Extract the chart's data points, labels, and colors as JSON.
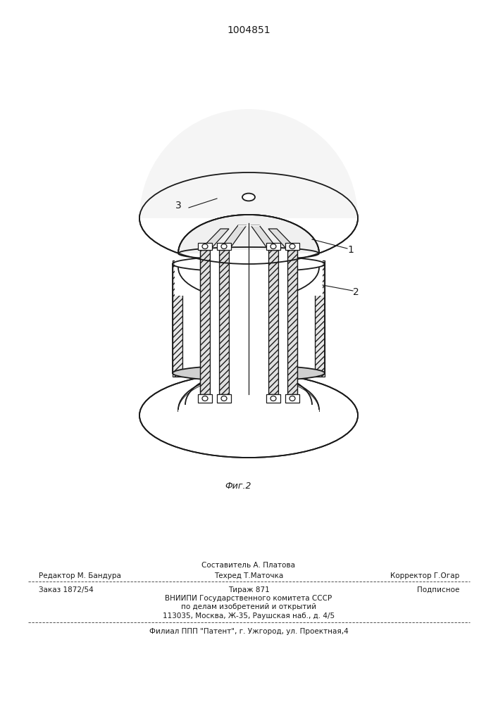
{
  "patent_number": "1004851",
  "fig_label": "Фиг.2",
  "label_1": "1",
  "label_2": "2",
  "label_3": "3",
  "footer_line1_left": "Редактор М. Бандура",
  "footer_line1_center_top": "Составитель А. Платова",
  "footer_line1_center_bot": "Техред Т.Маточка",
  "footer_line1_right": "Корректор Г.Огар",
  "footer_line2_left": "Заказ 1872/54",
  "footer_line2_center": "Тираж 871",
  "footer_line2_right": "Подписное",
  "footer_line3": "ВНИИПИ Государственного комитета СССР",
  "footer_line4": "по делам изобретений и открытий",
  "footer_line5": "113035, Москва, Ж-35, Раушская наб., д. 4/5",
  "footer_line6": "Филиал ППП \"Патент\", г. Ужгород, ул. Проектная,4",
  "bg_color": "#ffffff",
  "line_color": "#1a1a1a",
  "hatch_color": "#1a1a1a"
}
